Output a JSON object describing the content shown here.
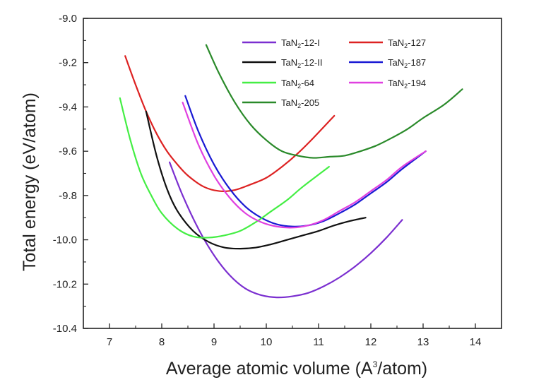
{
  "chart_data": {
    "type": "line",
    "xlabel": {
      "before": "Average atomic volume (A",
      "sup": "3",
      "after": "/atom)"
    },
    "ylabel": "Total energy (eV/atom)",
    "xlim": [
      6.5,
      14.5
    ],
    "ylim": [
      -10.4,
      -9.0
    ],
    "x_ticks": [
      7,
      8,
      9,
      10,
      11,
      12,
      13,
      14
    ],
    "y_ticks": [
      -9.0,
      -9.2,
      -9.4,
      -9.6,
      -9.8,
      -10.0,
      -10.2,
      -10.4
    ],
    "x_tick_labels": [
      "7",
      "8",
      "9",
      "10",
      "11",
      "12",
      "13",
      "14"
    ],
    "y_tick_labels": [
      "-9.0",
      "-9.2",
      "-9.4",
      "-9.6",
      "-9.8",
      "-10.0",
      "-10.2",
      "-10.4"
    ],
    "grid": false,
    "legend_position": "top-right",
    "series": [
      {
        "name": {
          "base": "TaN",
          "sub": "2",
          "suffix": "-12-I"
        },
        "color": "#7b2fd0",
        "x": [
          8.15,
          8.4,
          8.7,
          9.0,
          9.3,
          9.6,
          9.9,
          10.2,
          10.5,
          10.8,
          11.1,
          11.4,
          11.7,
          12.0,
          12.3,
          12.6
        ],
        "y": [
          -9.65,
          -9.8,
          -9.95,
          -10.07,
          -10.16,
          -10.22,
          -10.25,
          -10.26,
          -10.255,
          -10.24,
          -10.21,
          -10.17,
          -10.12,
          -10.06,
          -9.99,
          -9.91
        ]
      },
      {
        "name": {
          "base": "TaN",
          "sub": "2",
          "suffix": "-127"
        },
        "color": "#dd2222",
        "x": [
          7.3,
          7.5,
          7.7,
          7.9,
          8.1,
          8.3,
          8.5,
          8.8,
          9.1,
          9.4,
          9.7,
          10.0,
          10.3,
          10.6,
          10.9,
          11.3
        ],
        "y": [
          -9.17,
          -9.3,
          -9.42,
          -9.52,
          -9.6,
          -9.66,
          -9.71,
          -9.76,
          -9.78,
          -9.775,
          -9.75,
          -9.72,
          -9.67,
          -9.61,
          -9.54,
          -9.44
        ]
      },
      {
        "name": {
          "base": "TaN",
          "sub": "2",
          "suffix": "-12-II"
        },
        "color": "#111111",
        "x": [
          7.7,
          7.9,
          8.1,
          8.3,
          8.6,
          8.9,
          9.2,
          9.5,
          9.8,
          10.1,
          10.4,
          10.7,
          11.0,
          11.3,
          11.6,
          11.9
        ],
        "y": [
          -9.42,
          -9.62,
          -9.77,
          -9.87,
          -9.96,
          -10.01,
          -10.035,
          -10.04,
          -10.035,
          -10.02,
          -10.0,
          -9.98,
          -9.96,
          -9.935,
          -9.915,
          -9.9
        ]
      },
      {
        "name": {
          "base": "TaN",
          "sub": "2",
          "suffix": "-187"
        },
        "color": "#1a1ad4",
        "x": [
          8.45,
          8.7,
          9.0,
          9.3,
          9.6,
          9.9,
          10.2,
          10.5,
          10.8,
          11.1,
          11.4,
          11.7,
          12.0,
          12.3,
          12.6,
          13.05
        ],
        "y": [
          -9.35,
          -9.51,
          -9.66,
          -9.77,
          -9.85,
          -9.9,
          -9.93,
          -9.94,
          -9.935,
          -9.915,
          -9.88,
          -9.84,
          -9.79,
          -9.74,
          -9.68,
          -9.6
        ]
      },
      {
        "name": {
          "base": "TaN",
          "sub": "2",
          "suffix": "-64"
        },
        "color": "#44ee44",
        "x": [
          7.2,
          7.4,
          7.6,
          7.8,
          8.0,
          8.3,
          8.6,
          8.9,
          9.2,
          9.5,
          9.8,
          10.1,
          10.4,
          10.7,
          11.2
        ],
        "y": [
          -9.36,
          -9.55,
          -9.7,
          -9.8,
          -9.88,
          -9.95,
          -9.985,
          -9.99,
          -9.98,
          -9.96,
          -9.92,
          -9.87,
          -9.82,
          -9.76,
          -9.67
        ]
      },
      {
        "name": {
          "base": "TaN",
          "sub": "2",
          "suffix": "-194"
        },
        "color": "#e040e0",
        "x": [
          8.4,
          8.7,
          9.0,
          9.3,
          9.6,
          9.9,
          10.2,
          10.5,
          10.8,
          11.1,
          11.4,
          11.7,
          12.0,
          12.3,
          12.6,
          13.05
        ],
        "y": [
          -9.38,
          -9.57,
          -9.71,
          -9.81,
          -9.88,
          -9.92,
          -9.94,
          -9.945,
          -9.935,
          -9.91,
          -9.87,
          -9.83,
          -9.78,
          -9.73,
          -9.67,
          -9.6
        ]
      },
      {
        "name": {
          "base": "TaN",
          "sub": "2",
          "suffix": "-205"
        },
        "color": "#2a8a2a",
        "x": [
          8.85,
          9.1,
          9.4,
          9.7,
          10.0,
          10.3,
          10.6,
          10.9,
          11.2,
          11.5,
          11.8,
          12.1,
          12.4,
          12.7,
          13.0,
          13.4,
          13.75
        ],
        "y": [
          -9.12,
          -9.25,
          -9.38,
          -9.48,
          -9.55,
          -9.6,
          -9.62,
          -9.63,
          -9.625,
          -9.62,
          -9.6,
          -9.575,
          -9.54,
          -9.5,
          -9.45,
          -9.39,
          -9.32
        ]
      }
    ]
  }
}
